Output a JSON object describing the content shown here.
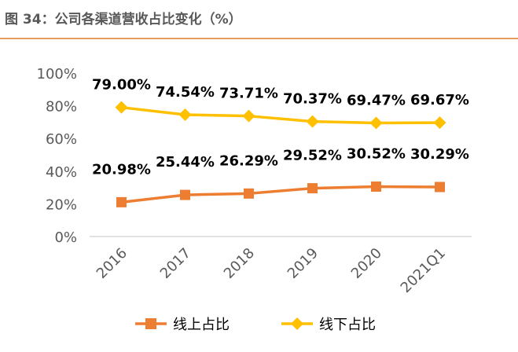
{
  "title": "图 34：公司各渠道营收占比变化（%）",
  "colors": {
    "online": "#ED7D31",
    "offline": "#FFC000",
    "title_rule": "#E59B5C",
    "axis": "#D9D9D9"
  },
  "chart_data": {
    "type": "line",
    "categories": [
      "2016",
      "2017",
      "2018",
      "2019",
      "2020",
      "2021Q1"
    ],
    "ylim": [
      0,
      100
    ],
    "yticks": [
      "0%",
      "20%",
      "40%",
      "60%",
      "80%",
      "100%"
    ],
    "legend_position": "bottom",
    "grid": false,
    "series": [
      {
        "name": "线上占比",
        "values": [
          20.98,
          25.44,
          26.29,
          29.52,
          30.52,
          30.29
        ],
        "labels": [
          "20.98%",
          "25.44%",
          "26.29%",
          "29.52%",
          "30.52%",
          "30.29%"
        ],
        "color": "#ED7D31",
        "marker": "square"
      },
      {
        "name": "线下占比",
        "values": [
          79.0,
          74.54,
          73.71,
          70.37,
          69.47,
          69.67
        ],
        "labels": [
          "79.00%",
          "74.54%",
          "73.71%",
          "70.37%",
          "69.47%",
          "69.67%"
        ],
        "color": "#FFC000",
        "marker": "diamond"
      }
    ]
  }
}
